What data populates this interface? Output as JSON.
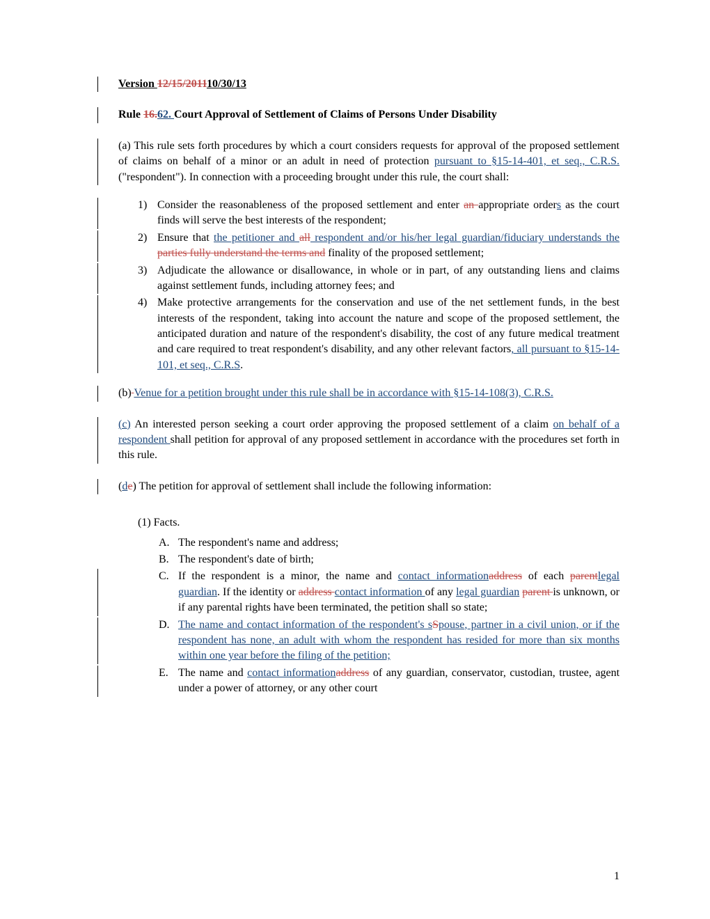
{
  "version": {
    "prefix": "Version ",
    "old_date": "12/15/2011",
    "new_date": "10/30/13"
  },
  "rule": {
    "prefix": "Rule ",
    "old_num": "16.",
    "new_num": "62.  ",
    "title": "Court Approval of Settlement of Claims of Persons Under Disability"
  },
  "section_a": {
    "p1_1": "(a) This rule sets forth procedures by which a court considers requests for approval of the proposed settlement of claims on behalf of a minor or an adult in need of protection ",
    "p1_ins": "pursuant to §15-14-401, et seq., C.R.S. ",
    "p1_2": "(\"respondent\").  In connection with a proceeding brought under this rule, the court shall:"
  },
  "list_a": {
    "item1": {
      "num": "1)",
      "t1": "Consider the reasonableness of the proposed settlement and enter ",
      "del": "an ",
      "t2": "appropriate order",
      "ins": "s",
      "t3": " as the court finds will serve the best interests of the respondent;"
    },
    "item2": {
      "num": "2)",
      "t1": "Ensure that ",
      "ins1": "the petitioner and ",
      "del1": "all",
      "ins2": " respondent and/or his/her legal guardian/fiduciary understands the",
      "del2": " parties fully understand the terms and",
      "t2": " finality of the proposed settlement;"
    },
    "item3": {
      "num": "3)",
      "t1": "Adjudicate the allowance or disallowance, in whole or in part, of any outstanding liens and claims against settlement funds, including attorney fees; and"
    },
    "item4": {
      "num": "4)",
      "t1": "Make protective arrangements for the conservation and use of the net settlement funds, in the best interests of the respondent, taking into account the nature and scope of the proposed settlement, the anticipated duration and nature of the respondent's disability, the cost of any future medical treatment and care required to treat respondent's disability, and any other relevant factors",
      "ins": ", all pursuant to §15-14-101, et seq., C.R.S",
      "t2": "."
    }
  },
  "section_b": {
    "t1": "(b)",
    "del": "  ",
    "ins": "Venue for a petition brought under this rule shall be in accordance with ",
    "ins2": "§",
    "ins3": "15-14-108(3), C.R.S."
  },
  "section_c": {
    "ins_label": "(c)",
    "t1": " An interested person seeking a court order approving the proposed settlement of a claim ",
    "ins": "on behalf of a respondent ",
    "t2": "shall petition for approval of any proposed settlement in accordance with the procedures set forth in this rule."
  },
  "section_d": {
    "open": "(",
    "ins": "d",
    "del": "e",
    "t1": ") The petition for approval of settlement shall include the following information:"
  },
  "sub1_label": "(1) Facts.",
  "facts": {
    "a": {
      "num": "A.",
      "t": "The respondent's name and address;"
    },
    "b": {
      "num": "B.",
      "t": "The respondent's date of birth;"
    },
    "c": {
      "num": "C.",
      "t1": "If the respondent is a minor, the name and ",
      "ins1": "contact information",
      "del1": "address",
      "t2": " of each ",
      "del2": "parent",
      "ins2": "legal guardian",
      "t3": ". If the identity or ",
      "del3": "address ",
      "ins3": "contact information ",
      "t4": "of any ",
      "ins4": "legal guardian",
      "t5": " ",
      "del4": "parent ",
      "t6": "is unknown, or if any parental rights have been terminated, the petition shall so state;"
    },
    "d": {
      "num": "D.",
      "ins1": "The name and contact information of the respondent's s",
      "del1": "S",
      "ins2": "pouse",
      "ins3": ", partner in a civil union",
      "ins4": ", or if the respondent has none, an adult with whom the respondent has resided for more than six months within one year before the filing of the petition; "
    },
    "e": {
      "num": "E.",
      "t1": "The name and ",
      "ins": "contact information",
      "del": "address",
      "t2": " of any guardian, conservator, custodian, trustee, agent under a power of attorney, or any other court"
    }
  },
  "page_number": "1"
}
